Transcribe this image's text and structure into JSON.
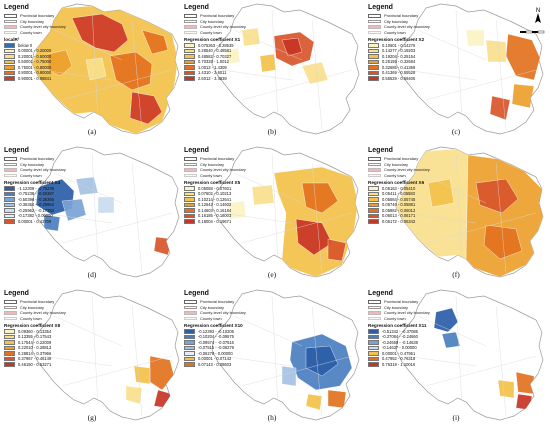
{
  "legend_heading": "Legend",
  "boundary_labels": {
    "provincial": "Provincial boundary",
    "city": "City boundary",
    "county_level_city": "County-level city boundary",
    "county_town": "County town"
  },
  "panels": [
    {
      "label": "(a)",
      "title": "localR²",
      "map_color": "#e3552f",
      "classes": [
        {
          "range": "below 0",
          "color": "#2e6fb4"
        },
        {
          "range": "0.00001 - 0.20000",
          "color": "#fbf3c4"
        },
        {
          "range": "0.20001 - 0.50000",
          "color": "#f9e08c"
        },
        {
          "range": "0.50001 - 0.75000",
          "color": "#f4c24a"
        },
        {
          "range": "0.75001 - 0.80000",
          "color": "#eda02d"
        },
        {
          "range": "0.80001 - 0.90000",
          "color": "#e3721f"
        },
        {
          "range": "0.90001 - 0.98841",
          "color": "#cf3a2a"
        }
      ]
    },
    {
      "label": "(b)",
      "title": "Regression coefficient X1",
      "map_color": "#d14a25",
      "classes": [
        {
          "range": "0.075363 - 0.28539",
          "color": "#fbf3c4"
        },
        {
          "range": "0.28540 - 0.48581",
          "color": "#f9e08c"
        },
        {
          "range": "0.48582 - 0.70327",
          "color": "#f4c24a"
        },
        {
          "range": "0.70328 - 1.0012",
          "color": "#eda02d"
        },
        {
          "range": "1.0013 - 1.4309",
          "color": "#e3721f"
        },
        {
          "range": "1.4310 - 2.6011",
          "color": "#d8552a"
        },
        {
          "range": "2.6012 - 3.4839",
          "color": "#c83525"
        }
      ]
    },
    {
      "label": "(c)",
      "title": "Regression coefficient X2",
      "map_color": "#e2a13a",
      "classes": [
        {
          "range": "0.10601 - 0.14276",
          "color": "#fbf3c4"
        },
        {
          "range": "0.14277 - 0.19203",
          "color": "#f9e08c"
        },
        {
          "range": "0.19204 - 0.25154",
          "color": "#f4c24a"
        },
        {
          "range": "0.25155 - 0.32684",
          "color": "#eda02d"
        },
        {
          "range": "0.32685 - 0.41368",
          "color": "#e3721f"
        },
        {
          "range": "0.41369 - 0.55528",
          "color": "#d8552a"
        },
        {
          "range": "0.55529 - 0.69406",
          "color": "#c83525"
        }
      ]
    },
    {
      "label": "(d)",
      "title": "Regression coefficient X4",
      "map_color": "#4f86c6",
      "classes": [
        {
          "range": "-1.12309 - -0.75239",
          "color": "#2c5ea8"
        },
        {
          "range": "-0.75238 - -0.50397",
          "color": "#4a7fc1"
        },
        {
          "range": "-0.50396 - -0.36365",
          "color": "#7aa3d4"
        },
        {
          "range": "-0.36364 - -0.25963",
          "color": "#a5c2e3"
        },
        {
          "range": "-0.25962 - -0.17383",
          "color": "#cadcf0"
        },
        {
          "range": "-0.17382 - 0.00000",
          "color": "#e6eff8"
        },
        {
          "range": "0.00001 - 0.43709",
          "color": "#d8552a"
        }
      ]
    },
    {
      "label": "(e)",
      "title": "Regression coefficient X5",
      "map_color": "#e3862a",
      "classes": [
        {
          "range": "0.05058 - 0.07601",
          "color": "#fbf3c4"
        },
        {
          "range": "0.07602 - 0.10213",
          "color": "#f9e08c"
        },
        {
          "range": "0.10214 - 0.12641",
          "color": "#f4c24a"
        },
        {
          "range": "0.12642 - 0.14602",
          "color": "#eda02d"
        },
        {
          "range": "0.14603 - 0.16184",
          "color": "#e3721f"
        },
        {
          "range": "0.16185 - 0.18003",
          "color": "#d8552a"
        },
        {
          "range": "0.18004 - 0.19671",
          "color": "#c83525"
        }
      ]
    },
    {
      "label": "(f)",
      "title": "Regression coefficient X6",
      "map_color": "#eda02d",
      "classes": [
        {
          "range": "0.05163 - 0.05410",
          "color": "#fbf3c4"
        },
        {
          "range": "0.05411 - 0.05583",
          "color": "#f9e08c"
        },
        {
          "range": "0.05584 - 0.05745",
          "color": "#f4c24a"
        },
        {
          "range": "0.05746 - 0.05881",
          "color": "#eda02d"
        },
        {
          "range": "0.05882 - 0.06012",
          "color": "#e3721f"
        },
        {
          "range": "0.06013 - 0.06171",
          "color": "#d8552a"
        },
        {
          "range": "0.06172 - 0.06342",
          "color": "#c83525"
        }
      ]
    },
    {
      "label": "(g)",
      "title": "Regression coefficient X8",
      "map_color": "#e7932a",
      "classes": [
        {
          "range": "0.09360 - 0.13354",
          "color": "#fbf3c4"
        },
        {
          "range": "0.13355 - 0.17543",
          "color": "#f9e08c"
        },
        {
          "range": "0.17544 - 0.22009",
          "color": "#f4c24a"
        },
        {
          "range": "0.22010 - 0.28813",
          "color": "#eda02d"
        },
        {
          "range": "0.28814 - 0.37966",
          "color": "#e3721f"
        },
        {
          "range": "0.37967 - 0.46149",
          "color": "#d8552a"
        },
        {
          "range": "0.46150 - 0.53271",
          "color": "#c83525"
        }
      ]
    },
    {
      "label": "(h)",
      "title": "Regression coefficient X10",
      "map_color": "#3c74bb",
      "classes": [
        {
          "range": "-0.12393 - -0.10205",
          "color": "#2c5ea8"
        },
        {
          "range": "-0.10204 - -0.09575",
          "color": "#4a7fc1"
        },
        {
          "range": "-0.09574 - -0.07516",
          "color": "#7aa3d4"
        },
        {
          "range": "-0.07515 - -0.06279",
          "color": "#a5c2e3"
        },
        {
          "range": "-0.06278 - 0.00000",
          "color": "#e6eff8"
        },
        {
          "range": "0.00001 - 0.07142",
          "color": "#f4c24a"
        },
        {
          "range": "0.07143 - 0.08603",
          "color": "#e3721f"
        }
      ]
    },
    {
      "label": "(i)",
      "title": "Regression coefficient X11",
      "map_color": "#2c5ea8",
      "classes": [
        {
          "range": "-0.51342 - -0.37085",
          "color": "#2c5ea8"
        },
        {
          "range": "-0.37084 - -0.24660",
          "color": "#4a7fc1"
        },
        {
          "range": "-0.24659 - -0.14638",
          "color": "#7aa3d4"
        },
        {
          "range": "-0.14637 - 0.00000",
          "color": "#cadcf0"
        },
        {
          "range": "0.00001 - 0.47951",
          "color": "#f4c24a"
        },
        {
          "range": "0.47952 - 0.76318",
          "color": "#e3721f"
        },
        {
          "range": "0.76319 - 1.10016",
          "color": "#c83525"
        }
      ]
    }
  ]
}
